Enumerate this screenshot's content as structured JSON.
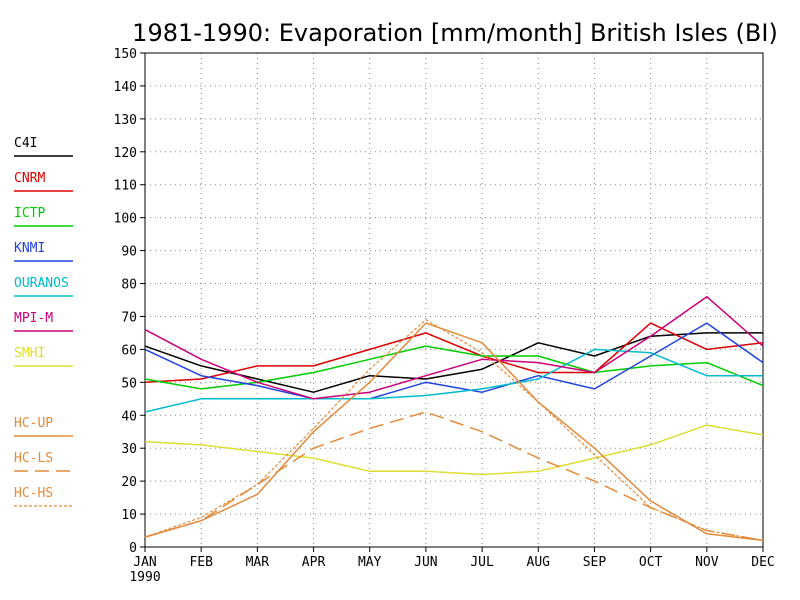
{
  "chart_data": {
    "type": "line",
    "title": "1981-1990: Evaporation [mm/month] British Isles (BI)",
    "x_labels": [
      "JAN",
      "FEB",
      "MAR",
      "APR",
      "MAY",
      "JUN",
      "JUL",
      "AUG",
      "SEP",
      "OCT",
      "NOV",
      "DEC"
    ],
    "x_sublabel": "1990",
    "ylim": [
      0,
      150
    ],
    "y_ticks": [
      0,
      10,
      20,
      30,
      40,
      50,
      60,
      70,
      80,
      90,
      100,
      110,
      120,
      130,
      140,
      150
    ],
    "grid": true,
    "legend_position": "left",
    "series": [
      {
        "name": "C4I",
        "color": "#000000",
        "dash": "solid",
        "values": [
          61,
          55,
          51,
          47,
          52,
          51,
          54,
          62,
          58,
          64,
          65,
          65
        ]
      },
      {
        "name": "CNRM",
        "color": "#dd0000",
        "dash": "solid",
        "values": [
          50,
          51,
          55,
          55,
          60,
          65,
          58,
          53,
          53,
          68,
          60,
          62
        ]
      },
      {
        "name": "ICTP",
        "color": "#00cc00",
        "dash": "solid",
        "values": [
          51,
          48,
          50,
          53,
          57,
          61,
          58,
          58,
          53,
          55,
          56,
          49
        ]
      },
      {
        "name": "KNMI",
        "color": "#2244dd",
        "dash": "solid",
        "values": [
          60,
          52,
          49,
          45,
          45,
          50,
          47,
          52,
          48,
          58,
          68,
          56
        ]
      },
      {
        "name": "OURANOS",
        "color": "#00bbcc",
        "dash": "solid",
        "values": [
          41,
          45,
          45,
          45,
          45,
          46,
          48,
          51,
          60,
          59,
          52,
          52
        ]
      },
      {
        "name": "MPI-M",
        "color": "#cc0077",
        "dash": "solid",
        "values": [
          66,
          57,
          50,
          45,
          47,
          52,
          57,
          56,
          53,
          64,
          76,
          61
        ]
      },
      {
        "name": "SMHI",
        "color": "#dddd33",
        "dash": "solid",
        "values": [
          32,
          31,
          29,
          27,
          23,
          23,
          22,
          23,
          27,
          31,
          37,
          34
        ]
      },
      {
        "name": "HC-UP",
        "color": "#e38b3a",
        "dash": "solid",
        "values": [
          3,
          8,
          16,
          35,
          50,
          68,
          62,
          44,
          30,
          14,
          4,
          2
        ]
      },
      {
        "name": "HC-LS",
        "color": "#e38b3a",
        "dash": "long",
        "values": [
          3,
          8,
          19,
          30,
          36,
          41,
          35,
          27,
          20,
          12,
          5,
          2
        ]
      },
      {
        "name": "HC-HS",
        "color": "#e38b3a",
        "dash": "short",
        "values": [
          3,
          9,
          19,
          36,
          54,
          69,
          59,
          44,
          28,
          12,
          5,
          2
        ]
      }
    ]
  }
}
